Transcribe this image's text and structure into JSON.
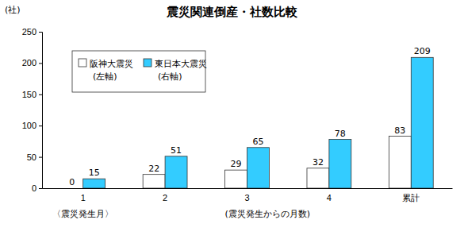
{
  "chart_data": {
    "type": "bar",
    "title": "震災関連倒産・社数比較",
    "y_label": "(社)",
    "x_label": "(震災発生からの月数)",
    "annotations": [
      "〈震災発生月〉"
    ],
    "categories": [
      "1",
      "2",
      "3",
      "4",
      "累計"
    ],
    "series": [
      {
        "name": "阪神大震災\n(左軸)",
        "color": "#ffffff",
        "values": [
          0,
          22,
          29,
          32,
          83
        ]
      },
      {
        "name": "東日本大震災\n(右軸)",
        "color": "#33ccff",
        "values": [
          15,
          51,
          65,
          78,
          209
        ]
      }
    ],
    "ylim": [
      0,
      250
    ],
    "yticks": [
      0,
      50,
      100,
      150,
      200,
      250
    ],
    "grid": false,
    "legend": "upper left",
    "data_labels": true
  }
}
